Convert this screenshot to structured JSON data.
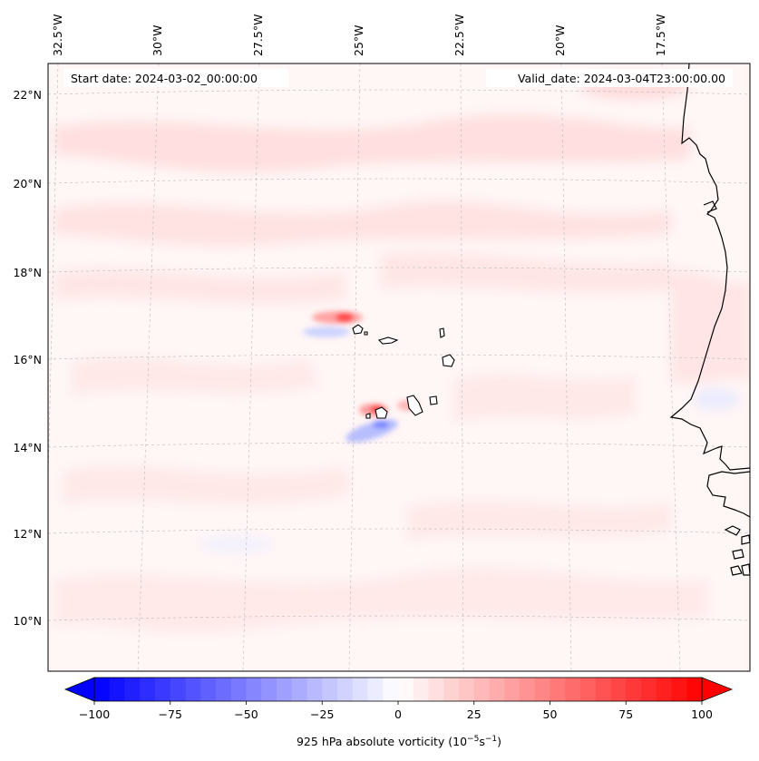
{
  "map": {
    "start_label": "Start date: 2024-03-02_00:00:00",
    "valid_label": "Valid_date: 2024-03-04T23:00:00.00",
    "lon_labels": [
      "32.5°W",
      "30°W",
      "27.5°W",
      "25°W",
      "22.5°W",
      "20°W",
      "17.5°W"
    ],
    "lat_labels": [
      "22°N",
      "20°N",
      "18°N",
      "16°N",
      "14°N",
      "12°N",
      "10°N"
    ],
    "gridlines": true,
    "field": "925 hPa absolute vorticity",
    "background_tint": "#fff5f5"
  },
  "colorbar": {
    "label": "925 hPa absolute vorticity (10",
    "label_exp1": "−5",
    "label_mid": "s",
    "label_exp2": "−1",
    "label_end": ")",
    "ticks": [
      "−100",
      "−75",
      "−50",
      "−25",
      "0",
      "25",
      "50",
      "75",
      "100"
    ],
    "min": -100,
    "max": 100,
    "extend": "both",
    "colormap": "bwr",
    "color_min": "#0000ff",
    "color_mid": "#ffffff",
    "color_max": "#ff0000"
  }
}
